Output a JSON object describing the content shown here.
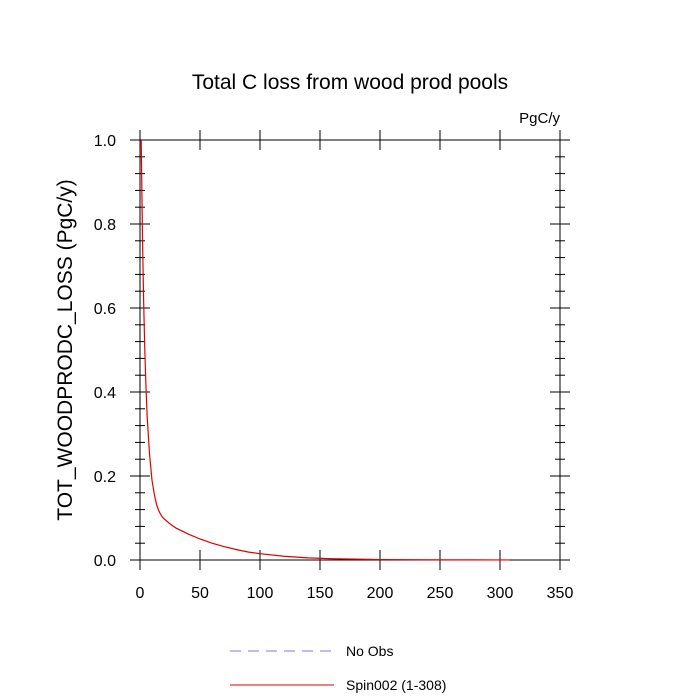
{
  "chart_data": {
    "type": "line",
    "title": "Total C loss from wood prod pools",
    "units_label": "PgC/y",
    "xlabel": "",
    "ylabel": "TOT_WOODPRODC_LOSS  (PgC/y)",
    "xlim": [
      0,
      350
    ],
    "ylim": [
      0,
      1.0
    ],
    "x_ticks": [
      0,
      50,
      100,
      150,
      200,
      250,
      300,
      350
    ],
    "x_tick_labels": [
      "0",
      "50",
      "100",
      "150",
      "200",
      "250",
      "300",
      "350"
    ],
    "y_ticks": [
      0.0,
      0.2,
      0.4,
      0.6,
      0.8,
      1.0
    ],
    "y_tick_labels": [
      "0.0",
      "0.2",
      "0.4",
      "0.6",
      "0.8",
      "1.0"
    ],
    "grid": false,
    "legend_position": "bottom",
    "series": [
      {
        "name": "No Obs",
        "color": "#7b7bdc",
        "style": "dashed",
        "x": [],
        "y": []
      },
      {
        "name": "Spin002 (1-308)",
        "color": "#e00000",
        "style": "solid",
        "x": [
          1,
          2,
          3,
          4,
          5,
          6,
          8,
          10,
          12,
          14,
          16,
          18,
          20,
          25,
          30,
          40,
          50,
          60,
          70,
          80,
          90,
          100,
          120,
          140,
          160,
          180,
          200,
          225,
          250,
          275,
          300,
          308
        ],
        "y": [
          1.0,
          0.78,
          0.62,
          0.5,
          0.41,
          0.34,
          0.25,
          0.19,
          0.155,
          0.13,
          0.115,
          0.105,
          0.098,
          0.086,
          0.076,
          0.062,
          0.05,
          0.04,
          0.032,
          0.025,
          0.019,
          0.015,
          0.009,
          0.005,
          0.003,
          0.002,
          0.001,
          0.0007,
          0.0004,
          0.0003,
          0.0002,
          0.0002
        ]
      }
    ]
  }
}
